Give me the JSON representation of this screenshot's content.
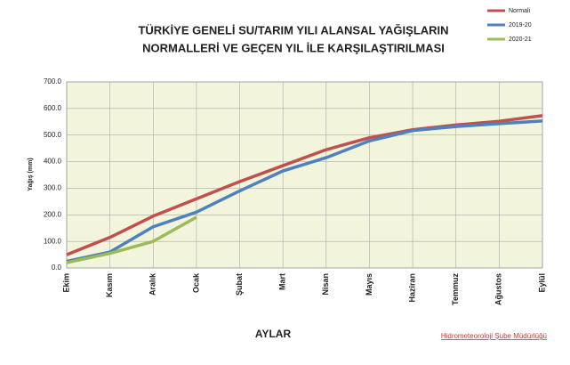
{
  "chart_data": {
    "type": "line",
    "title": [
      "TÜRKİYE GENELİ  SU/TARIM YILI ALANSAL YAĞIŞLARIN",
      "NORMALLERİ VE GEÇEN YIL İLE KARŞILAŞTIRILMASI"
    ],
    "x_label": "AYLAR",
    "y_label": "Yağış (mm)",
    "footer": "Hidrometeoroloji Şube Müdürlüğü",
    "categories": [
      "Ekim",
      "Kasım",
      "Aralık",
      "Ocak",
      "Şubat",
      "Mart",
      "Nisan",
      "Mayıs",
      "Haziran",
      "Temmuz",
      "Ağustos",
      "Eylül"
    ],
    "series": [
      {
        "name": "Normali",
        "color": "#c0504d",
        "values": [
          50,
          115,
          195,
          260,
          325,
          385,
          445,
          490,
          520,
          538,
          552,
          573
        ]
      },
      {
        "name": "2019-20",
        "color": "#4f81bd",
        "values": [
          25,
          60,
          155,
          210,
          290,
          365,
          415,
          478,
          517,
          532,
          543,
          553
        ]
      },
      {
        "name": "2020-21",
        "color": "#9bbb59",
        "values": [
          20,
          55,
          100,
          191,
          null,
          null,
          null,
          null,
          null,
          null,
          null,
          null
        ]
      }
    ],
    "ylim": [
      0,
      700
    ],
    "yticks": [
      {
        "value": 0,
        "label": "0.0"
      },
      {
        "value": 100,
        "label": "100.0"
      },
      {
        "value": 200,
        "label": "200.0"
      },
      {
        "value": 300,
        "label": "300.0"
      },
      {
        "value": 400,
        "label": "400.0"
      },
      {
        "value": 500,
        "label": "500.0"
      },
      {
        "value": 600,
        "label": "600.0"
      },
      {
        "value": 700,
        "label": "700.0"
      }
    ],
    "grid": true,
    "legend": "upper right"
  }
}
